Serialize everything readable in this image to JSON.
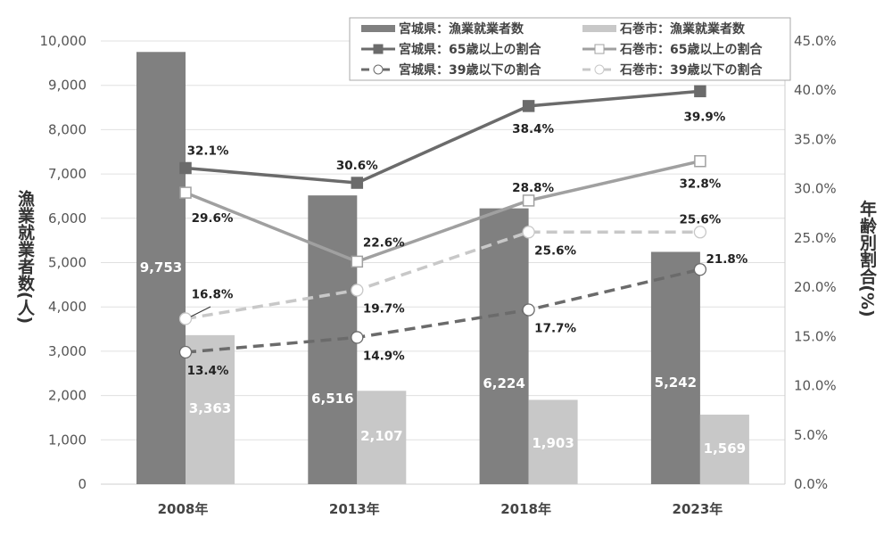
{
  "chart_data": {
    "type": "bar+line",
    "categories": [
      "2008年",
      "2013年",
      "2018年",
      "2023年"
    ],
    "y_left": {
      "label": "漁業就業者数(人)",
      "range": [
        0,
        10000
      ],
      "ticks": [
        "0",
        "1,000",
        "2,000",
        "3,000",
        "4,000",
        "5,000",
        "6,000",
        "7,000",
        "8,000",
        "9,000",
        "10,000"
      ]
    },
    "y_right": {
      "label": "年齢別割合(%)",
      "range": [
        0,
        45
      ],
      "ticks": [
        "0.0%",
        "5.0%",
        "10.0%",
        "15.0%",
        "20.0%",
        "25.0%",
        "30.0%",
        "35.0%",
        "40.0%",
        "45.0%"
      ]
    },
    "grid": true,
    "legend_position": "top-right",
    "bars": [
      {
        "name": "宮城県：漁業就業者数",
        "color": "#808080",
        "values": [
          9753,
          6516,
          6224,
          5242
        ],
        "labels": [
          "9,753",
          "6,516",
          "6,224",
          "5,242"
        ]
      },
      {
        "name": "石巻市：漁業就業者数",
        "color": "#c8c8c8",
        "values": [
          3363,
          2107,
          1903,
          1569
        ],
        "labels": [
          "3,363",
          "2,107",
          "1,903",
          "1,569"
        ]
      }
    ],
    "lines": [
      {
        "name": "宮城県：65歳以上の割合",
        "color": "#6b6b6b",
        "marker": "filled-square",
        "dash": false,
        "values": [
          32.1,
          30.6,
          38.4,
          39.9
        ],
        "labels": [
          "32.1%",
          "30.6%",
          "38.4%",
          "39.9%"
        ]
      },
      {
        "name": "石巻市：65歳以上の割合",
        "color": "#a0a0a0",
        "marker": "open-square",
        "dash": false,
        "values": [
          29.6,
          22.6,
          28.8,
          32.8
        ],
        "labels": [
          "29.6%",
          "22.6%",
          "28.8%",
          "32.8%"
        ]
      },
      {
        "name": "宮城県：39歳以下の割合",
        "color": "#6b6b6b",
        "marker": "open-circle",
        "dash": true,
        "values": [
          13.4,
          14.9,
          17.7,
          21.8
        ],
        "labels": [
          "13.4%",
          "14.9%",
          "17.7%",
          "21.8%"
        ]
      },
      {
        "name": "石巻市：39歳以下の割合",
        "color": "#c8c8c8",
        "marker": "open-circle",
        "dash": true,
        "values": [
          16.8,
          19.7,
          25.6,
          25.6
        ],
        "labels": [
          "16.8%",
          "19.7%",
          "25.6%",
          "25.6%"
        ]
      }
    ]
  }
}
